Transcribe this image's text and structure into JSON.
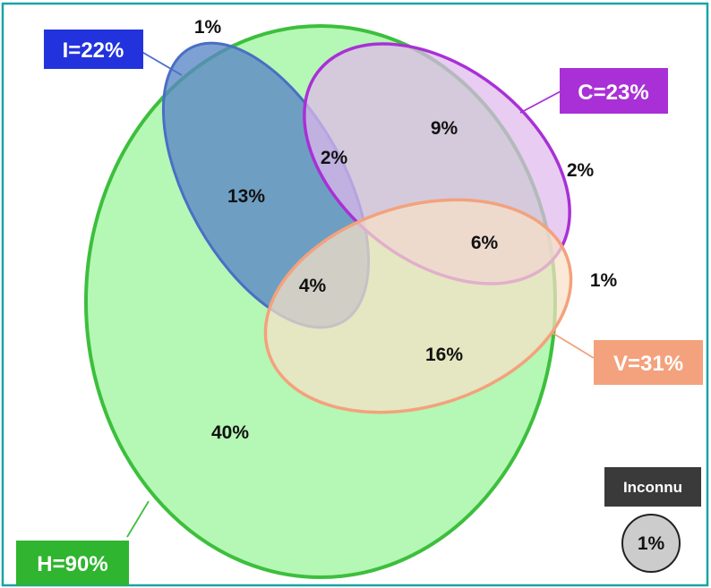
{
  "colors": {
    "frame": "#1aa4a4",
    "H": "#3dbf3d",
    "H_fill": "#b5f7b5",
    "I": "#4a6fc4",
    "I_fill": "#5a86c6",
    "C": "#a930d6",
    "C_fill": "#e0b8ec",
    "V": "#f3a27d",
    "V_fill": "#f6e0c6",
    "inconnu_badge": "#3a3a3a",
    "inconnu_circle": "#cccccc",
    "I_tag": "#2233dd",
    "C_tag": "#a930d6",
    "V_tag": "#f3a27d",
    "H_tag": "#2fb52f"
  },
  "sets": {
    "H": "H=90%",
    "I": "I=22%",
    "C": "C=23%",
    "V": "V=31%"
  },
  "regions": {
    "I_only_outside_H": "1%",
    "H_I": "13%",
    "H_I_C": "2%",
    "H_C": "9%",
    "C_only_outside_H": "2%",
    "H_C_V": "6%",
    "V_only_outside_H": "1%",
    "H_I_V": "4%",
    "H_V": "16%",
    "H_only": "40%"
  },
  "unknown": {
    "label": "Inconnu",
    "value": "1%"
  }
}
